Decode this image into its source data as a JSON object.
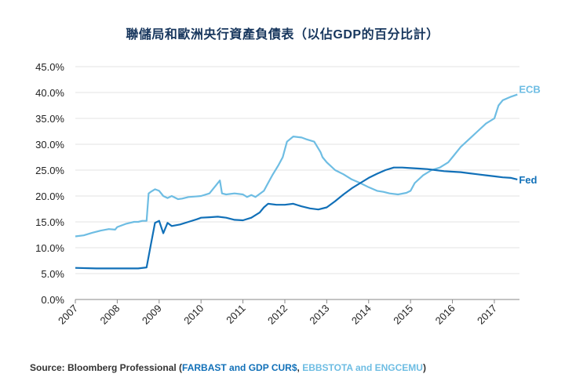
{
  "title": "聯儲局和歐洲央行資產負債表（以佔GDP的百分比計）",
  "source": {
    "prefix": "Source: Bloomberg Professional (",
    "fed_part": "FARBAST and GDP CUR$",
    "sep": ", ",
    "ecb_part": "EBBSTOTA and ENGCEMU",
    "suffix": ")"
  },
  "colors": {
    "fed": "#1170b8",
    "ecb": "#6ebde3",
    "grid": "#e3e3e3",
    "axis": "#888888",
    "title": "#17365d"
  },
  "chart_data": {
    "type": "line",
    "title": "聯儲局和歐洲央行資產負債表（以佔GDP的百分比計）",
    "xlabel": "",
    "ylabel": "",
    "xlim": [
      2007.0,
      2017.6
    ],
    "ylim": [
      0,
      45
    ],
    "y_ticks": [
      "0.0%",
      "5.0%",
      "10.0%",
      "15.0%",
      "20.0%",
      "25.0%",
      "30.0%",
      "35.0%",
      "40.0%",
      "45.0%"
    ],
    "x_ticks": [
      "2007",
      "2008",
      "2009",
      "2010",
      "2011",
      "2012",
      "2013",
      "2014",
      "2015",
      "2016",
      "2017"
    ],
    "grid": "horizontal",
    "series": [
      {
        "name": "ECB",
        "color": "#6ebde3",
        "x": [
          2007.0,
          2007.2,
          2007.4,
          2007.6,
          2007.8,
          2007.95,
          2008.0,
          2008.1,
          2008.2,
          2008.3,
          2008.4,
          2008.5,
          2008.6,
          2008.7,
          2008.75,
          2008.8,
          2008.9,
          2009.0,
          2009.1,
          2009.2,
          2009.3,
          2009.45,
          2009.55,
          2009.7,
          2009.85,
          2010.0,
          2010.2,
          2010.35,
          2010.45,
          2010.5,
          2010.6,
          2010.8,
          2011.0,
          2011.1,
          2011.2,
          2011.3,
          2011.5,
          2011.6,
          2011.7,
          2011.85,
          2011.95,
          2012.0,
          2012.05,
          2012.2,
          2012.4,
          2012.5,
          2012.7,
          2012.85,
          2012.9,
          2013.0,
          2013.2,
          2013.4,
          2013.6,
          2013.8,
          2014.0,
          2014.2,
          2014.35,
          2014.5,
          2014.7,
          2014.9,
          2015.0,
          2015.1,
          2015.3,
          2015.5,
          2015.7,
          2015.9,
          2016.0,
          2016.2,
          2016.4,
          2016.6,
          2016.8,
          2017.0,
          2017.1,
          2017.2,
          2017.4,
          2017.55
        ],
        "y": [
          12.2,
          12.4,
          12.9,
          13.3,
          13.6,
          13.5,
          14.0,
          14.3,
          14.6,
          14.8,
          15.0,
          15.0,
          15.2,
          15.2,
          20.5,
          20.8,
          21.3,
          21.0,
          20.0,
          19.6,
          20.0,
          19.4,
          19.5,
          19.8,
          19.9,
          20.0,
          20.5,
          22.0,
          23.0,
          20.5,
          20.3,
          20.5,
          20.3,
          19.8,
          20.2,
          19.8,
          21.0,
          22.5,
          24.0,
          26.0,
          27.5,
          29.0,
          30.5,
          31.5,
          31.3,
          31.0,
          30.5,
          28.5,
          27.5,
          26.5,
          25.0,
          24.2,
          23.2,
          22.5,
          21.7,
          21.0,
          20.8,
          20.5,
          20.3,
          20.6,
          21.0,
          22.5,
          24.0,
          25.0,
          25.5,
          26.5,
          27.5,
          29.5,
          31.0,
          32.5,
          34.0,
          35.0,
          37.5,
          38.5,
          39.2,
          39.6
        ]
      },
      {
        "name": "Fed",
        "color": "#1170b8",
        "x": [
          2007.0,
          2007.5,
          2008.0,
          2008.5,
          2008.7,
          2008.8,
          2008.9,
          2009.0,
          2009.1,
          2009.2,
          2009.3,
          2009.5,
          2009.7,
          2009.9,
          2010.0,
          2010.2,
          2010.4,
          2010.6,
          2010.8,
          2011.0,
          2011.2,
          2011.4,
          2011.5,
          2011.6,
          2011.8,
          2012.0,
          2012.2,
          2012.4,
          2012.6,
          2012.8,
          2013.0,
          2013.2,
          2013.4,
          2013.6,
          2013.8,
          2014.0,
          2014.2,
          2014.4,
          2014.6,
          2014.8,
          2015.0,
          2015.2,
          2015.4,
          2015.6,
          2015.8,
          2016.0,
          2016.2,
          2016.4,
          2016.6,
          2016.8,
          2017.0,
          2017.2,
          2017.4,
          2017.55
        ],
        "y": [
          6.1,
          6.0,
          6.0,
          6.0,
          6.2,
          10.5,
          14.8,
          15.2,
          12.8,
          14.8,
          14.2,
          14.5,
          15.0,
          15.5,
          15.8,
          15.9,
          16.0,
          15.8,
          15.4,
          15.3,
          15.8,
          16.8,
          17.8,
          18.5,
          18.3,
          18.3,
          18.5,
          18.0,
          17.6,
          17.4,
          17.8,
          19.0,
          20.3,
          21.5,
          22.5,
          23.5,
          24.3,
          25.0,
          25.5,
          25.5,
          25.4,
          25.3,
          25.2,
          25.0,
          24.8,
          24.7,
          24.6,
          24.4,
          24.2,
          24.0,
          23.8,
          23.6,
          23.5,
          23.2
        ]
      }
    ]
  }
}
